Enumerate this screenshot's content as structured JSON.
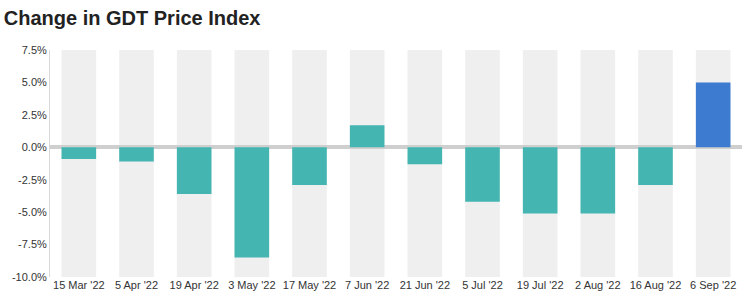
{
  "chart_data": {
    "type": "bar",
    "title": "Change in GDT Price Index",
    "categories": [
      "15 Mar '22",
      "5 Apr '22",
      "19 Apr '22",
      "3 May '22",
      "17 May '22",
      "7 Jun '22",
      "21 Jun '22",
      "5 Jul '22",
      "19 Jul '22",
      "2 Aug '22",
      "16 Aug '22",
      "6 Sep '22"
    ],
    "values": [
      -0.9,
      -1.1,
      -3.6,
      -8.5,
      -2.9,
      1.7,
      -1.3,
      -4.2,
      -5.1,
      -5.1,
      -2.9,
      5.0
    ],
    "colors": [
      "#45b5b1",
      "#45b5b1",
      "#45b5b1",
      "#45b5b1",
      "#45b5b1",
      "#45b5b1",
      "#45b5b1",
      "#45b5b1",
      "#45b5b1",
      "#45b5b1",
      "#45b5b1",
      "#3d7bd1"
    ],
    "ylim": [
      -10,
      7.5
    ],
    "yticks": [
      {
        "value": -10,
        "label": "-10.0%"
      },
      {
        "value": -7.5,
        "label": "-7.5%"
      },
      {
        "value": -5,
        "label": "-5.0%"
      },
      {
        "value": -2.5,
        "label": "-2.5%"
      },
      {
        "value": 0,
        "label": "0.0%"
      },
      {
        "value": 2.5,
        "label": "2.5%"
      },
      {
        "value": 5,
        "label": "5.0%"
      },
      {
        "value": 7.5,
        "label": "7.5%"
      }
    ],
    "grid": false
  }
}
